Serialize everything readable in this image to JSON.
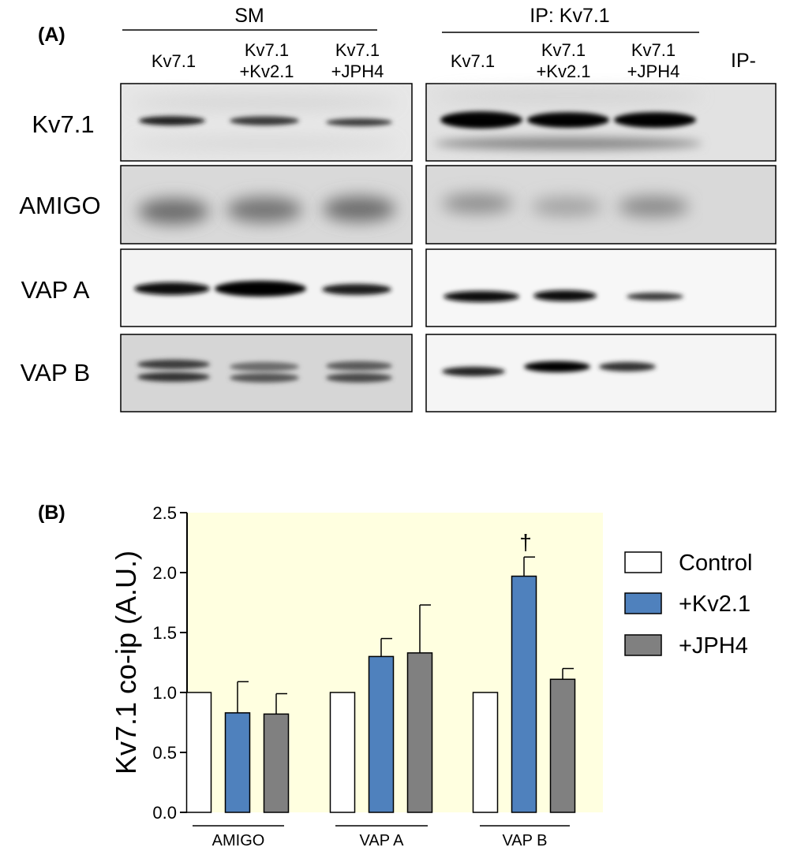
{
  "panel_a": {
    "label": "(A)",
    "sm_header": "SM",
    "ip_header": "IP: Kv7.1",
    "sm_lanes": [
      {
        "line1": "Kv7.1",
        "line2": ""
      },
      {
        "line1": "Kv7.1",
        "line2": "+Kv2.1"
      },
      {
        "line1": "Kv7.1",
        "line2": "+JPH4"
      }
    ],
    "ip_lanes": [
      {
        "line1": "Kv7.1",
        "line2": ""
      },
      {
        "line1": "Kv7.1",
        "line2": "+Kv2.1"
      },
      {
        "line1": "Kv7.1",
        "line2": "+JPH4"
      },
      {
        "line1": "IP-",
        "line2": ""
      }
    ],
    "rows": [
      {
        "label": "Kv7.1",
        "sm_bg": "#e7e7e7",
        "ip_bg": "#e2e2e2"
      },
      {
        "label": "AMIGO",
        "sm_bg": "#d9d9d9",
        "ip_bg": "#d9d9d9"
      },
      {
        "label": "VAP A",
        "sm_bg": "#f3f3f3",
        "ip_bg": "#f7f7f7"
      },
      {
        "label": "VAP B",
        "sm_bg": "#d6d6d6",
        "ip_bg": "#f5f5f5"
      }
    ]
  },
  "panel_b": {
    "label": "(B)",
    "chart_data": {
      "type": "bar",
      "categories": [
        "AMIGO",
        "VAP A",
        "VAP B"
      ],
      "series": [
        {
          "name": "Control",
          "color": "#ffffff",
          "values": [
            1.0,
            1.0,
            1.0
          ],
          "errors": [
            0,
            0,
            0
          ]
        },
        {
          "name": "+Kv2.1",
          "color": "#4f81bd",
          "values": [
            0.83,
            1.3,
            1.97
          ],
          "errors": [
            0.26,
            0.15,
            0.16
          ]
        },
        {
          "name": "+JPH4",
          "color": "#808080",
          "values": [
            0.82,
            1.33,
            1.11
          ],
          "errors": [
            0.17,
            0.4,
            0.09
          ]
        }
      ],
      "ylabel": "Kv7.1 co-ip (A.U.)",
      "xlabel": "",
      "ylim": [
        0,
        2.5
      ],
      "yticks": [
        "0.0",
        "0.5",
        "1.0",
        "1.5",
        "2.0",
        "2.5"
      ],
      "plot_background": "#ffffe0",
      "annotations": [
        {
          "text": "†",
          "category": "VAP B",
          "series": "+Kv2.1"
        }
      ],
      "legend_position": "right",
      "grid": false
    }
  }
}
